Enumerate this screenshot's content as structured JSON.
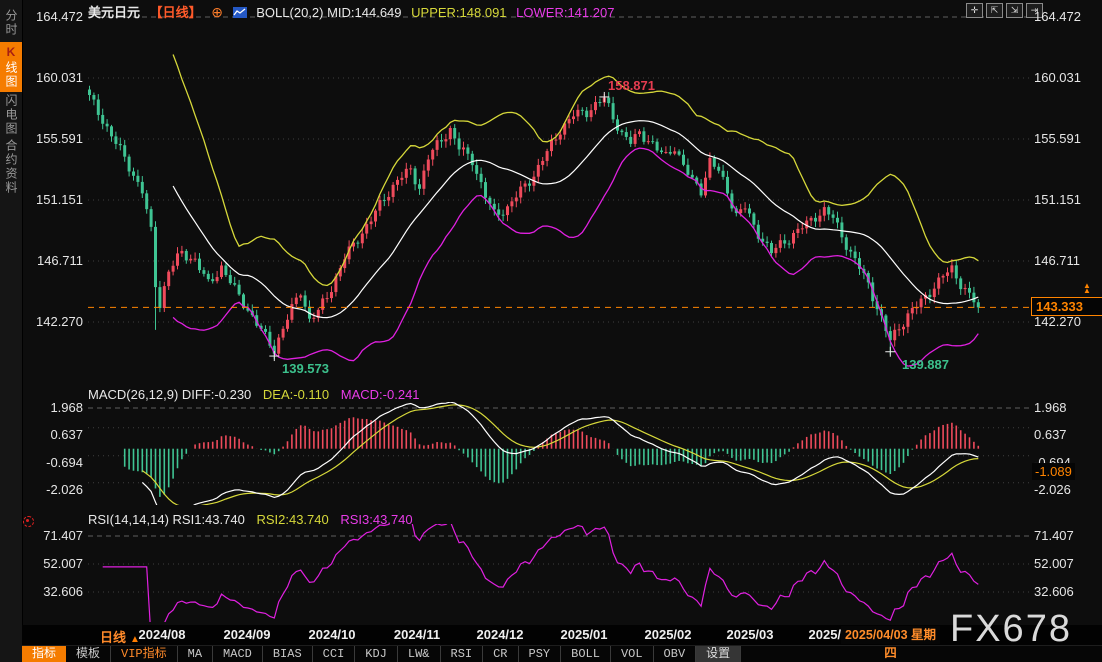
{
  "header": {
    "symbol": "美元日元",
    "period_tag": "【日线】",
    "add_icon": "⊕",
    "boll_mid": "BOLL(20,2) MID:144.649",
    "boll_upper": "UPPER:148.091",
    "boll_lower": "LOWER:141.207"
  },
  "sidebar": {
    "items": [
      {
        "label": "分时图",
        "active": false
      },
      {
        "label": "K线图",
        "active": true
      },
      {
        "label": "闪电图",
        "active": false
      },
      {
        "label": "合约资料",
        "active": false
      }
    ]
  },
  "top_icons": [
    {
      "name": "pan-icon",
      "glyph": "✛"
    },
    {
      "name": "scale-left-axis-icon",
      "glyph": "⇱"
    },
    {
      "name": "scale-right-axis-icon",
      "glyph": "⇲"
    },
    {
      "name": "shift-right-icon",
      "glyph": "⇥"
    }
  ],
  "main_chart": {
    "y_axis_labels": [
      "164.472",
      "160.031",
      "155.591",
      "151.151",
      "146.711",
      "142.270"
    ],
    "annotation_high": "158.871",
    "annotation_low_sep": "139.573",
    "annotation_low_apr": "139.887",
    "price_tag": "143.333"
  },
  "macd_pane": {
    "header_main": "MACD(26,12,9) DIFF:-0.230",
    "header_dea": "DEA:-0.110",
    "header_macd": "MACD:-0.241",
    "y_axis_labels": [
      "1.968",
      "0.637",
      "-0.694",
      "-2.026"
    ],
    "value_tag": "-1.089"
  },
  "rsi_pane": {
    "header_main": "RSI(14,14,14) RSI1:43.740",
    "header_rsi2": "RSI2:43.740",
    "header_rsi3": "RSI3:43.740",
    "y_axis_labels": [
      "71.407",
      "52.007",
      "32.606"
    ]
  },
  "x_axis": {
    "period": "日线",
    "labels": [
      "2024/08",
      "2024/09",
      "2024/10",
      "2024/11",
      "2024/12",
      "2025/01",
      "2025/02",
      "2025/03",
      "2025/04",
      "2025/05"
    ],
    "highlight": "2025/04/03 星期四"
  },
  "toolbar": {
    "items": [
      {
        "label": "指标",
        "style": "active"
      },
      {
        "label": "模板",
        "style": "plain"
      },
      {
        "label": "VIP指标",
        "style": "vip"
      },
      {
        "label": "MA",
        "style": "plain"
      },
      {
        "label": "MACD",
        "style": "plain"
      },
      {
        "label": "BIAS",
        "style": "plain"
      },
      {
        "label": "CCI",
        "style": "plain"
      },
      {
        "label": "KDJ",
        "style": "plain"
      },
      {
        "label": "LW&",
        "style": "plain"
      },
      {
        "label": "RSI",
        "style": "plain"
      },
      {
        "label": "CR",
        "style": "plain"
      },
      {
        "label": "PSY",
        "style": "plain"
      },
      {
        "label": "BOLL",
        "style": "plain"
      },
      {
        "label": "VOL",
        "style": "plain"
      },
      {
        "label": "OBV",
        "style": "plain"
      },
      {
        "label": "设置",
        "style": "settings"
      }
    ]
  },
  "watermark": "FX678",
  "colors": {
    "up_candle": "#ef4b5c",
    "down_candle": "#3fc493",
    "boll_mid": "#ffffff",
    "boll_upper": "#d6d83a",
    "boll_lower": "#e020e0",
    "accent_orange": "#ff8400",
    "annotation_red": "#e63c50",
    "annotation_green": "#3cc08c",
    "grid_dotted": "#3f3f3f",
    "grid_dashed": "#5f5f5f"
  },
  "chart_data": {
    "type": "candlestick+indicators",
    "title": "USD/JPY daily with BOLL(20,2), MACD(26,12,9), RSI(14,14,14)",
    "candle_count": 203,
    "price_axis": {
      "top": 164.472,
      "bottom_label": 142.27,
      "tick_step": 4.4405
    },
    "macd_axis_labels": [
      1.968,
      0.637,
      -0.694,
      -2.026
    ],
    "rsi_axis_labels": [
      71.407,
      52.007,
      32.606
    ],
    "price_keypoints": [
      [
        0,
        158.6
      ],
      [
        3,
        157.0
      ],
      [
        6,
        155.3
      ],
      [
        9,
        153.6
      ],
      [
        12,
        151.8
      ],
      [
        14,
        148.8
      ],
      [
        15,
        145.0
      ],
      [
        16,
        143.6
      ],
      [
        18,
        146.0
      ],
      [
        21,
        147.3
      ],
      [
        24,
        146.8
      ],
      [
        27,
        145.0
      ],
      [
        30,
        146.3
      ],
      [
        33,
        144.6
      ],
      [
        36,
        143.2
      ],
      [
        39,
        141.6
      ],
      [
        42,
        140.3
      ],
      [
        44,
        141.8
      ],
      [
        46,
        143.2
      ],
      [
        48,
        144.6
      ],
      [
        50,
        142.4
      ],
      [
        52,
        143.0
      ],
      [
        55,
        144.8
      ],
      [
        58,
        146.9
      ],
      [
        61,
        148.4
      ],
      [
        64,
        149.7
      ],
      [
        67,
        151.3
      ],
      [
        70,
        152.6
      ],
      [
        73,
        153.3
      ],
      [
        75,
        152.1
      ],
      [
        77,
        154.2
      ],
      [
        80,
        155.6
      ],
      [
        82,
        156.3
      ],
      [
        84,
        154.9
      ],
      [
        87,
        154.1
      ],
      [
        90,
        151.4
      ],
      [
        92,
        150.1
      ],
      [
        95,
        150.6
      ],
      [
        98,
        151.8
      ],
      [
        101,
        153.0
      ],
      [
        104,
        154.6
      ],
      [
        107,
        156.3
      ],
      [
        110,
        157.3
      ],
      [
        113,
        157.6
      ],
      [
        115,
        158.1
      ],
      [
        117,
        158.5
      ],
      [
        119,
        157.2
      ],
      [
        121,
        156.0
      ],
      [
        123,
        155.3
      ],
      [
        125,
        156.0
      ],
      [
        127,
        155.6
      ],
      [
        129,
        154.8
      ],
      [
        131,
        154.3
      ],
      [
        133,
        155.1
      ],
      [
        135,
        153.6
      ],
      [
        137,
        152.5
      ],
      [
        139,
        151.9
      ],
      [
        141,
        154.0
      ],
      [
        143,
        153.2
      ],
      [
        145,
        151.8
      ],
      [
        147,
        150.1
      ],
      [
        149,
        150.6
      ],
      [
        151,
        149.2
      ],
      [
        153,
        148.3
      ],
      [
        155,
        147.3
      ],
      [
        157,
        147.9
      ],
      [
        159,
        148.4
      ],
      [
        161,
        148.9
      ],
      [
        163,
        149.4
      ],
      [
        165,
        150.0
      ],
      [
        167,
        150.4
      ],
      [
        169,
        149.8
      ],
      [
        171,
        148.6
      ],
      [
        173,
        147.3
      ],
      [
        175,
        146.2
      ],
      [
        177,
        145.0
      ],
      [
        179,
        143.4
      ],
      [
        181,
        141.6
      ],
      [
        182,
        140.9
      ],
      [
        184,
        141.9
      ],
      [
        186,
        142.8
      ],
      [
        188,
        143.4
      ],
      [
        190,
        144.1
      ],
      [
        192,
        144.9
      ],
      [
        194,
        145.6
      ],
      [
        196,
        146.1
      ],
      [
        198,
        145.1
      ],
      [
        200,
        144.2
      ],
      [
        202,
        143.333
      ]
    ],
    "special_points": {
      "january_high": {
        "index": 117,
        "value": 158.871
      },
      "september_low": {
        "index": 42,
        "value": 139.573
      },
      "april_low": {
        "index": 182,
        "value": 139.887
      },
      "august_crash_low": {
        "index": 15,
        "value": 141.7
      },
      "last_close": 143.333
    },
    "indicators": {
      "boll": [
        20,
        2
      ],
      "macd": [
        26,
        12,
        9
      ],
      "rsi": [
        14,
        14,
        14
      ]
    },
    "current_values": {
      "boll_mid": 144.649,
      "boll_upper": 148.091,
      "boll_lower": 141.207,
      "diff": -0.23,
      "dea": -0.11,
      "macd": -0.241,
      "macd_tag": -1.089,
      "rsi1": 43.74,
      "rsi2": 43.74,
      "rsi3": 43.74
    }
  }
}
